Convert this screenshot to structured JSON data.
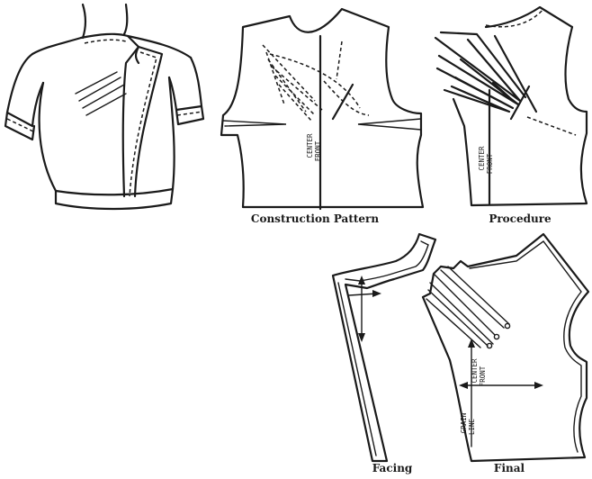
{
  "captions": {
    "construction": "Construction Pattern",
    "procedure": "Procedure",
    "facing": "Facing",
    "final": "Final"
  },
  "labels": {
    "center_front_a": "CENTER",
    "center_front_b": "FRONT",
    "grain_a": "GRAIN",
    "grain_b": "LINE"
  }
}
